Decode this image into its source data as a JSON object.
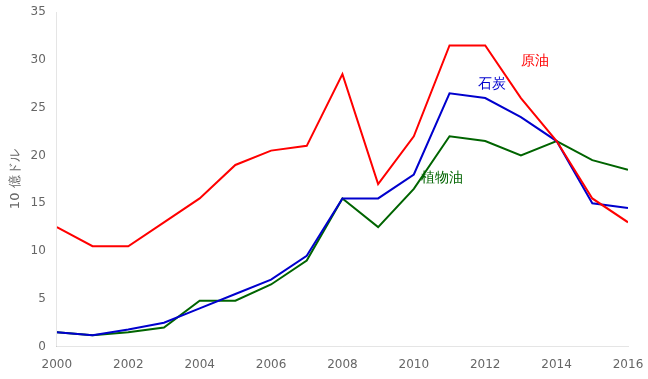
{
  "chart_data": {
    "type": "line",
    "ylabel": "10 億ドル",
    "x": [
      2000,
      2001,
      2002,
      2003,
      2004,
      2005,
      2006,
      2007,
      2008,
      2009,
      2010,
      2011,
      2012,
      2013,
      2014,
      2015,
      2016
    ],
    "series": [
      {
        "name": "原油",
        "color": "#ff0000",
        "values": [
          12.5,
          10.5,
          10.5,
          13.0,
          15.5,
          19.0,
          20.5,
          21.0,
          28.5,
          17.0,
          22.0,
          31.5,
          31.5,
          26.0,
          21.5,
          15.5,
          13.0
        ]
      },
      {
        "name": "石炭",
        "color": "#0000cd",
        "values": [
          1.5,
          1.2,
          1.8,
          2.5,
          4.0,
          5.5,
          7.0,
          9.5,
          15.5,
          15.5,
          18.0,
          26.5,
          26.0,
          24.0,
          21.5,
          15.0,
          14.5
        ]
      },
      {
        "name": "植物油",
        "color": "#006400",
        "values": [
          1.5,
          1.2,
          1.5,
          2.0,
          4.8,
          4.8,
          6.5,
          9.0,
          15.5,
          12.5,
          16.5,
          22.0,
          21.5,
          20.0,
          21.5,
          19.5,
          18.5
        ]
      }
    ],
    "annotations": [
      {
        "text": "原油",
        "x": 2013.0,
        "y": 29.5,
        "color": "#ff0000"
      },
      {
        "text": "石炭",
        "x": 2011.8,
        "y": 27.0,
        "color": "#0000cd"
      },
      {
        "text": "植物油",
        "x": 2010.2,
        "y": 17.2,
        "color": "#006400"
      }
    ],
    "xlim": [
      2000,
      2016
    ],
    "ylim": [
      0,
      35
    ],
    "xticks": [
      2000,
      2002,
      2004,
      2006,
      2008,
      2010,
      2012,
      2014,
      2016
    ],
    "yticks": [
      0,
      5,
      10,
      15,
      20,
      25,
      30,
      35
    ],
    "grid": false,
    "legend": false
  }
}
